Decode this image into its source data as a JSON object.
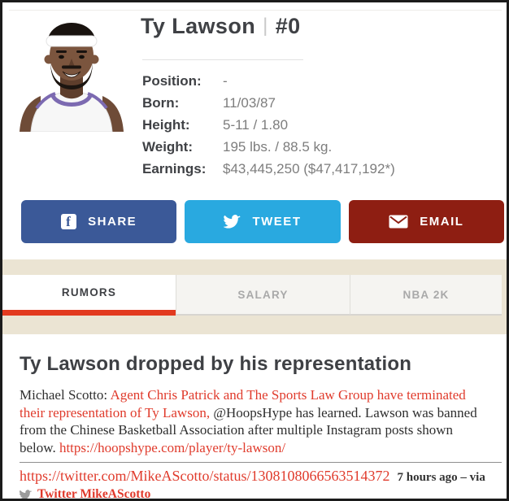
{
  "player": {
    "name": "Ty Lawson",
    "jersey_number": "#0",
    "info": [
      {
        "label": "Position:",
        "value": "-"
      },
      {
        "label": "Born:",
        "value": "11/03/87"
      },
      {
        "label": "Height:",
        "value": "5-11 / 1.80"
      },
      {
        "label": "Weight:",
        "value": "195 lbs. / 88.5 kg."
      },
      {
        "label": "Earnings:",
        "value": "$43,445,250 ($47,417,192*)"
      }
    ]
  },
  "share_buttons": [
    {
      "id": "facebook",
      "label": "SHARE",
      "icon": "facebook-icon"
    },
    {
      "id": "twitter",
      "label": "TWEET",
      "icon": "twitter-icon"
    },
    {
      "id": "email",
      "label": "EMAIL",
      "icon": "email-icon"
    }
  ],
  "tabs": [
    {
      "label": "RUMORS",
      "active": true
    },
    {
      "label": "SALARY",
      "active": false
    },
    {
      "label": "NBA 2K",
      "active": false
    }
  ],
  "article": {
    "title": "Ty Lawson dropped by his representation",
    "paragraph": [
      {
        "text": "Michael Scotto: ",
        "link": false
      },
      {
        "text": "Agent Chris Patrick and The Sports Law Group have terminated their representation of Ty Lawson,",
        "link": true
      },
      {
        "text": " @HoopsHype has learned. Lawson was banned from the Chinese Basketball Association after multiple Instagram posts shown below. ",
        "link": false
      },
      {
        "text": "https://hoopshype.com/player/ty-lawson/",
        "link": true
      }
    ],
    "source_link": "https://twitter.com/MikeAScotto/status/1308108066563514372",
    "source_meta": "7 hours ago – via",
    "source_account": "Twitter MikeAScotto"
  },
  "colors": {
    "facebook_blue": "#3b5998",
    "twitter_blue": "#29a9e0",
    "email_red": "#8e1e12",
    "accent_red": "#e23a1f",
    "link_red": "#e03b2c",
    "tab_band_beige": "#ebe4d3"
  }
}
